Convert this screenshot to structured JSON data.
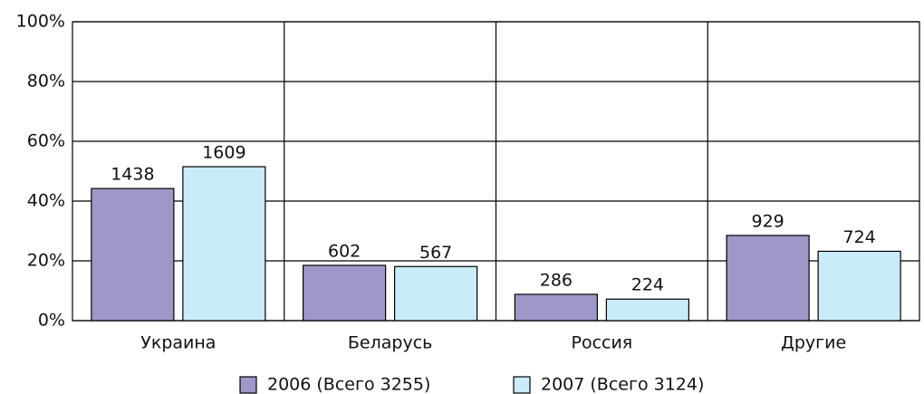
{
  "chart_data": {
    "type": "bar",
    "categories": [
      "Украина",
      "Беларусь",
      "Россия",
      "Другие"
    ],
    "series": [
      {
        "name": "2006 (Всего 3255)",
        "color": "#9e98c8",
        "values": [
          44.2,
          18.5,
          8.8,
          28.5
        ],
        "counts": [
          1438,
          602,
          286,
          929
        ]
      },
      {
        "name": "2007 (Всего 3124)",
        "color": "#c9ecf8",
        "values": [
          51.5,
          18.1,
          7.2,
          23.2
        ],
        "counts": [
          1609,
          567,
          224,
          724
        ]
      }
    ],
    "ylim": [
      0,
      100
    ],
    "yticks": [
      {
        "value": 0,
        "label": "0%"
      },
      {
        "value": 20,
        "label": "20%"
      },
      {
        "value": 40,
        "label": "40%"
      },
      {
        "value": 60,
        "label": "60%"
      },
      {
        "value": 80,
        "label": "80%"
      },
      {
        "value": 100,
        "label": "100%"
      }
    ],
    "grid": true,
    "legend": "bottom"
  }
}
